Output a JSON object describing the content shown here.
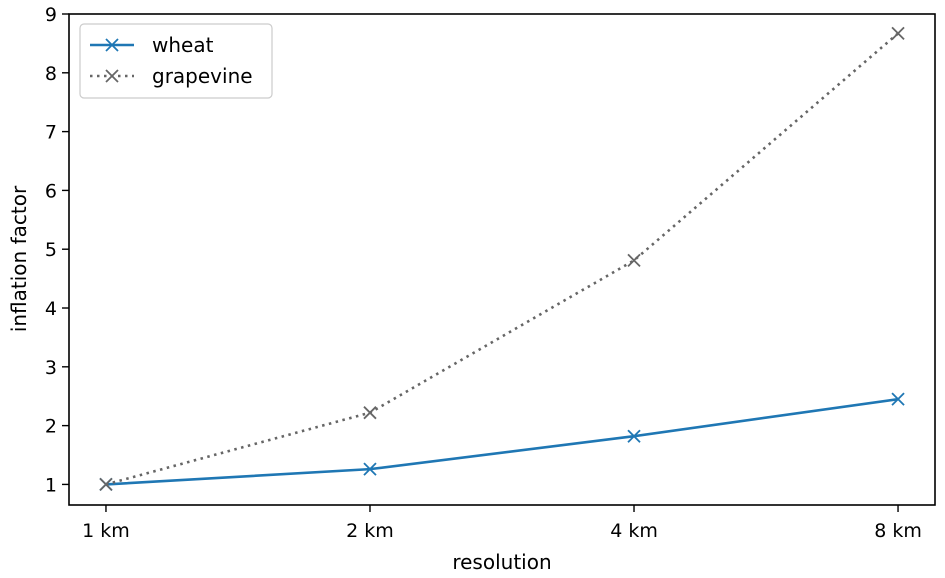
{
  "chart_data": {
    "type": "line",
    "categories": [
      "1 km",
      "2 km",
      "4 km",
      "8 km"
    ],
    "x": [
      0,
      1,
      2,
      3
    ],
    "xlabel": "resolution",
    "ylabel": "inflation factor",
    "ylim": [
      0.65,
      9.0
    ],
    "yticks": [
      1,
      2,
      3,
      4,
      5,
      6,
      7,
      8,
      9
    ],
    "grid": false,
    "legend_position": "top-left",
    "series": [
      {
        "name": "wheat",
        "values": [
          1.0,
          1.26,
          1.82,
          2.45
        ],
        "color": "#1f77b4",
        "line_style": "solid",
        "marker": "x"
      },
      {
        "name": "grapevine",
        "values": [
          1.0,
          2.22,
          4.81,
          8.67
        ],
        "color": "#666666",
        "line_style": "dotted",
        "marker": "x"
      }
    ]
  }
}
